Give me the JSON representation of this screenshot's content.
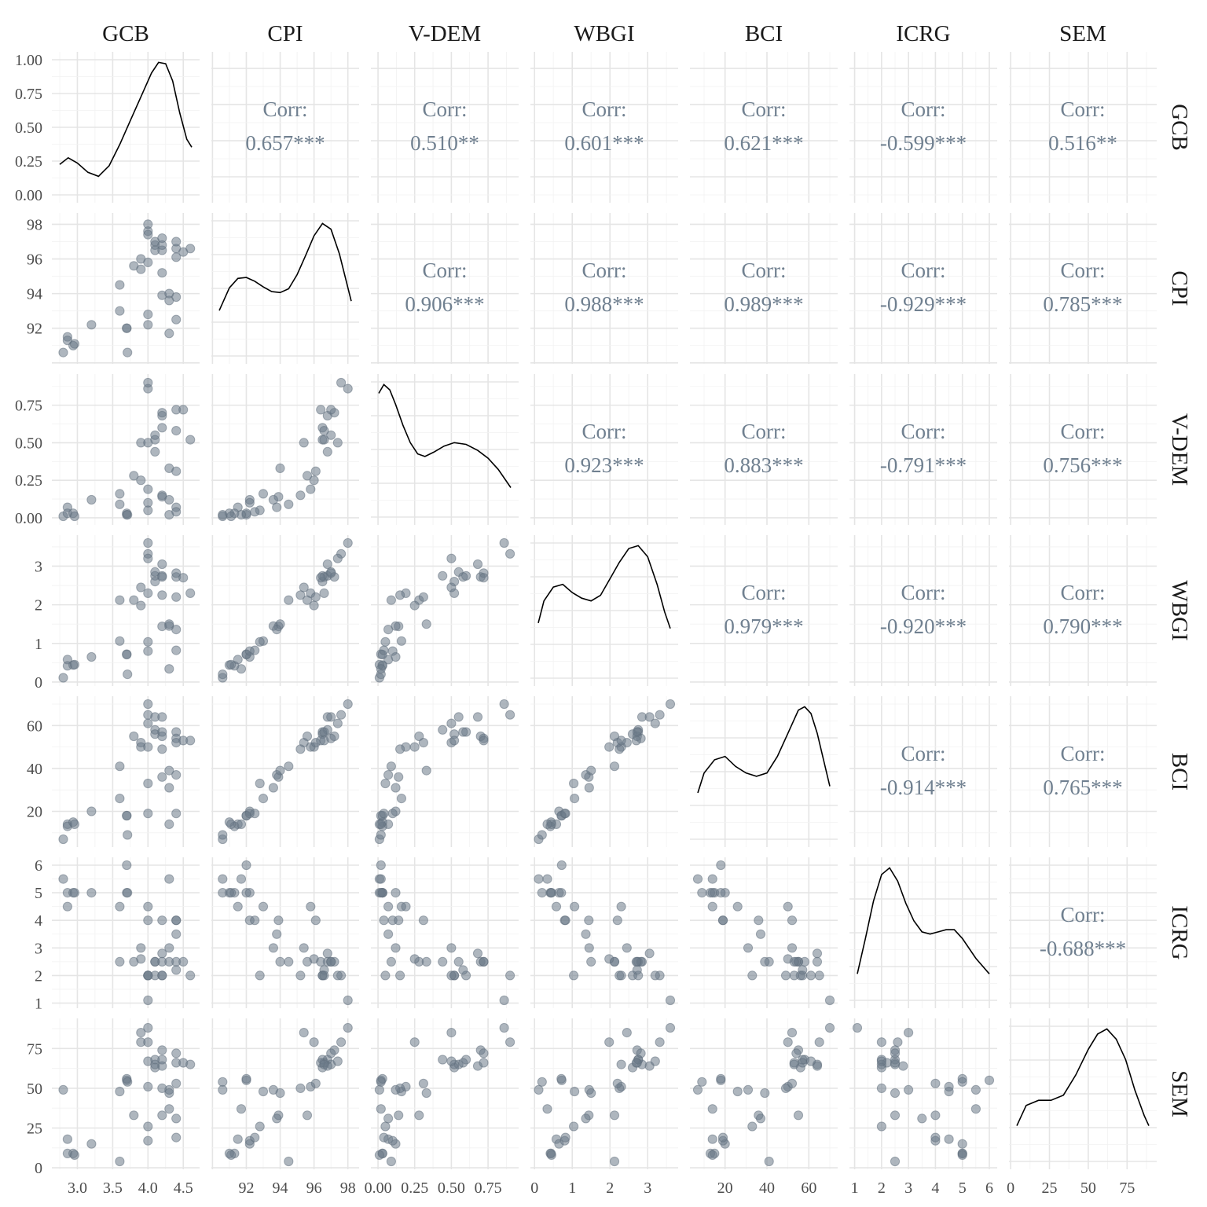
{
  "chart_data": {
    "type": "scatter-matrix",
    "variables": [
      "GCB",
      "CPI",
      "V-DEM",
      "WBGI",
      "BCI",
      "ICRG",
      "SEM"
    ],
    "axes": {
      "GCB": {
        "range": [
          2.75,
          4.62
        ],
        "ticks": [
          3.0,
          3.5,
          4.0,
          4.5
        ],
        "tick_labels": [
          "3.0",
          "3.5",
          "4.0",
          "4.5"
        ]
      },
      "CPI": {
        "range": [
          90.4,
          98.2
        ],
        "ticks": [
          92,
          94,
          96,
          98
        ],
        "tick_labels": [
          "92",
          "94",
          "96",
          "98"
        ]
      },
      "V-DEM": {
        "range": [
          0.005,
          0.905
        ],
        "ticks": [
          0.0,
          0.25,
          0.5,
          0.75
        ],
        "tick_labels": [
          "0.00",
          "0.25",
          "0.50",
          "0.75"
        ]
      },
      "WBGI": {
        "range": [
          0.1,
          3.6
        ],
        "ticks": [
          0,
          1,
          2,
          3
        ],
        "tick_labels": [
          "0",
          "1",
          "2",
          "3"
        ]
      },
      "BCI": {
        "range": [
          7,
          70
        ],
        "ticks": [
          20,
          40,
          60
        ],
        "tick_labels": [
          "20",
          "40",
          "60"
        ]
      },
      "ICRG": {
        "range": [
          1.1,
          6.0
        ],
        "ticks": [
          1,
          2,
          3,
          4,
          5,
          6
        ],
        "tick_labels": [
          "1",
          "2",
          "3",
          "4",
          "5",
          "6"
        ]
      },
      "SEM": {
        "range": [
          4,
          89
        ],
        "ticks": [
          0,
          25,
          50,
          75
        ],
        "tick_labels": [
          "0",
          "25",
          "50",
          "75"
        ]
      }
    },
    "density_y_axis": {
      "range": [
        0,
        1
      ],
      "ticks": [
        0,
        0.25,
        0.5,
        0.75,
        1.0
      ],
      "tick_labels": [
        "0.00",
        "0.25",
        "0.50",
        "0.75",
        "1.00"
      ]
    },
    "correlations": [
      [
        "GCB",
        "CPI",
        "0.657***"
      ],
      [
        "GCB",
        "V-DEM",
        "0.510**"
      ],
      [
        "GCB",
        "WBGI",
        "0.601***"
      ],
      [
        "GCB",
        "BCI",
        "0.621***"
      ],
      [
        "GCB",
        "ICRG",
        "-0.599***"
      ],
      [
        "GCB",
        "SEM",
        "0.516**"
      ],
      [
        "CPI",
        "V-DEM",
        "0.906***"
      ],
      [
        "CPI",
        "WBGI",
        "0.988***"
      ],
      [
        "CPI",
        "BCI",
        "0.989***"
      ],
      [
        "CPI",
        "ICRG",
        "-0.929***"
      ],
      [
        "CPI",
        "SEM",
        "0.785***"
      ],
      [
        "V-DEM",
        "WBGI",
        "0.923***"
      ],
      [
        "V-DEM",
        "BCI",
        "0.883***"
      ],
      [
        "V-DEM",
        "ICRG",
        "-0.791***"
      ],
      [
        "V-DEM",
        "SEM",
        "0.756***"
      ],
      [
        "WBGI",
        "BCI",
        "0.979***"
      ],
      [
        "WBGI",
        "ICRG",
        "-0.920***"
      ],
      [
        "WBGI",
        "SEM",
        "0.790***"
      ],
      [
        "BCI",
        "ICRG",
        "-0.914***"
      ],
      [
        "BCI",
        "SEM",
        "0.765***"
      ],
      [
        "ICRG",
        "SEM",
        "-0.688***"
      ]
    ],
    "corr_label": "Corr:",
    "density_curves": {
      "GCB": [
        [
          2.75,
          0.23
        ],
        [
          2.87,
          0.28
        ],
        [
          3.0,
          0.24
        ],
        [
          3.15,
          0.17
        ],
        [
          3.3,
          0.14
        ],
        [
          3.45,
          0.22
        ],
        [
          3.6,
          0.38
        ],
        [
          3.75,
          0.56
        ],
        [
          3.9,
          0.74
        ],
        [
          4.05,
          0.92
        ],
        [
          4.15,
          1.0
        ],
        [
          4.25,
          0.99
        ],
        [
          4.35,
          0.86
        ],
        [
          4.45,
          0.62
        ],
        [
          4.55,
          0.42
        ],
        [
          4.62,
          0.36
        ]
      ],
      "CPI": [
        [
          90.4,
          0.48
        ],
        [
          91,
          0.72
        ],
        [
          91.5,
          0.82
        ],
        [
          92,
          0.83
        ],
        [
          92.5,
          0.79
        ],
        [
          93,
          0.73
        ],
        [
          93.5,
          0.68
        ],
        [
          94,
          0.67
        ],
        [
          94.5,
          0.71
        ],
        [
          95,
          0.86
        ],
        [
          95.5,
          1.06
        ],
        [
          96,
          1.27
        ],
        [
          96.5,
          1.4
        ],
        [
          97,
          1.34
        ],
        [
          97.5,
          1.08
        ],
        [
          98.2,
          0.58
        ]
      ],
      "V-DEM": [
        [
          0.005,
          1.43
        ],
        [
          0.04,
          1.53
        ],
        [
          0.08,
          1.47
        ],
        [
          0.12,
          1.3
        ],
        [
          0.17,
          1.06
        ],
        [
          0.22,
          0.86
        ],
        [
          0.27,
          0.73
        ],
        [
          0.32,
          0.7
        ],
        [
          0.38,
          0.75
        ],
        [
          0.45,
          0.82
        ],
        [
          0.52,
          0.86
        ],
        [
          0.6,
          0.84
        ],
        [
          0.68,
          0.77
        ],
        [
          0.75,
          0.68
        ],
        [
          0.82,
          0.55
        ],
        [
          0.905,
          0.34
        ]
      ],
      "WBGI": [
        [
          0.1,
          0.2
        ],
        [
          0.25,
          0.28
        ],
        [
          0.5,
          0.33
        ],
        [
          0.75,
          0.34
        ],
        [
          1.0,
          0.31
        ],
        [
          1.25,
          0.29
        ],
        [
          1.5,
          0.28
        ],
        [
          1.75,
          0.3
        ],
        [
          2.0,
          0.36
        ],
        [
          2.25,
          0.42
        ],
        [
          2.5,
          0.47
        ],
        [
          2.75,
          0.48
        ],
        [
          3.0,
          0.44
        ],
        [
          3.25,
          0.34
        ],
        [
          3.45,
          0.24
        ],
        [
          3.6,
          0.18
        ]
      ],
      "BCI": [
        [
          7,
          0.014
        ],
        [
          10,
          0.02
        ],
        [
          15,
          0.024
        ],
        [
          20,
          0.025
        ],
        [
          25,
          0.022
        ],
        [
          30,
          0.02
        ],
        [
          35,
          0.019
        ],
        [
          40,
          0.02
        ],
        [
          45,
          0.025
        ],
        [
          50,
          0.032
        ],
        [
          55,
          0.039
        ],
        [
          58,
          0.04
        ],
        [
          61,
          0.038
        ],
        [
          64,
          0.032
        ],
        [
          67,
          0.024
        ],
        [
          70,
          0.016
        ]
      ],
      "ICRG": [
        [
          1.1,
          0.12
        ],
        [
          1.4,
          0.28
        ],
        [
          1.7,
          0.45
        ],
        [
          2.0,
          0.57
        ],
        [
          2.3,
          0.6
        ],
        [
          2.6,
          0.54
        ],
        [
          2.9,
          0.44
        ],
        [
          3.2,
          0.36
        ],
        [
          3.5,
          0.31
        ],
        [
          3.8,
          0.3
        ],
        [
          4.1,
          0.31
        ],
        [
          4.4,
          0.32
        ],
        [
          4.7,
          0.32
        ],
        [
          5.0,
          0.28
        ],
        [
          5.5,
          0.19
        ],
        [
          6.0,
          0.12
        ]
      ],
      "SEM": [
        [
          4,
          0.007
        ],
        [
          10,
          0.011
        ],
        [
          18,
          0.012
        ],
        [
          26,
          0.012
        ],
        [
          34,
          0.013
        ],
        [
          42,
          0.017
        ],
        [
          50,
          0.022
        ],
        [
          56,
          0.025
        ],
        [
          62,
          0.026
        ],
        [
          68,
          0.024
        ],
        [
          74,
          0.02
        ],
        [
          80,
          0.014
        ],
        [
          86,
          0.009
        ],
        [
          89,
          0.007
        ]
      ]
    },
    "observations": [
      {
        "GCB": 2.8,
        "CPI": 90.6,
        "V-DEM": 0.01,
        "WBGI": 0.11,
        "BCI": 7,
        "ICRG": 5.5,
        "SEM": 49
      },
      {
        "GCB": 2.86,
        "CPI": 91.5,
        "V-DEM": 0.07,
        "WBGI": 0.58,
        "BCI": 14,
        "ICRG": 4.5,
        "SEM": 18
      },
      {
        "GCB": 2.86,
        "CPI": 91.3,
        "V-DEM": 0.03,
        "WBGI": 0.42,
        "BCI": 13,
        "ICRG": 5.0,
        "SEM": 9
      },
      {
        "GCB": 2.94,
        "CPI": 91.0,
        "V-DEM": 0.03,
        "WBGI": 0.44,
        "BCI": 15,
        "ICRG": 5.0,
        "SEM": 9
      },
      {
        "GCB": 2.96,
        "CPI": 91.1,
        "V-DEM": 0.01,
        "WBGI": 0.45,
        "BCI": 14,
        "ICRG": 5.0,
        "SEM": 8
      },
      {
        "GCB": 3.2,
        "CPI": 92.2,
        "V-DEM": 0.12,
        "WBGI": 0.65,
        "BCI": 20,
        "ICRG": 5.0,
        "SEM": 15
      },
      {
        "GCB": 3.6,
        "CPI": 93.0,
        "V-DEM": 0.16,
        "WBGI": 1.06,
        "BCI": 26,
        "ICRG": 4.5,
        "SEM": 48
      },
      {
        "GCB": 3.6,
        "CPI": 94.5,
        "V-DEM": 0.09,
        "WBGI": 2.12,
        "BCI": 41,
        "ICRG": 2.5,
        "SEM": 4
      },
      {
        "GCB": 3.7,
        "CPI": 92.0,
        "V-DEM": 0.02,
        "WBGI": 0.72,
        "BCI": 18,
        "ICRG": 6.0,
        "SEM": 55
      },
      {
        "GCB": 3.7,
        "CPI": 92.0,
        "V-DEM": 0.03,
        "WBGI": 0.71,
        "BCI": 18,
        "ICRG": 5.0,
        "SEM": 56
      },
      {
        "GCB": 3.71,
        "CPI": 90.6,
        "V-DEM": 0.02,
        "WBGI": 0.2,
        "BCI": 9,
        "ICRG": 5.0,
        "SEM": 54
      },
      {
        "GCB": 3.8,
        "CPI": 95.6,
        "V-DEM": 0.28,
        "WBGI": 2.12,
        "BCI": 55,
        "ICRG": 2.5,
        "SEM": 33
      },
      {
        "GCB": 3.9,
        "CPI": 95.4,
        "V-DEM": 0.5,
        "WBGI": 2.45,
        "BCI": 52,
        "ICRG": 3.0,
        "SEM": 85
      },
      {
        "GCB": 3.9,
        "CPI": 96.0,
        "V-DEM": 0.25,
        "WBGI": 1.98,
        "BCI": 50,
        "ICRG": 2.6,
        "SEM": 79
      },
      {
        "GCB": 4.0,
        "CPI": 98.0,
        "V-DEM": 0.86,
        "WBGI": 3.6,
        "BCI": 70,
        "ICRG": 1.1,
        "SEM": 88
      },
      {
        "GCB": 4.0,
        "CPI": 97.6,
        "V-DEM": 0.9,
        "WBGI": 3.32,
        "BCI": 65,
        "ICRG": 2.0,
        "SEM": 79
      },
      {
        "GCB": 4.0,
        "CPI": 95.8,
        "V-DEM": 0.19,
        "WBGI": 2.3,
        "BCI": 50,
        "ICRG": 4.5,
        "SEM": 51
      },
      {
        "GCB": 4.0,
        "CPI": 92.8,
        "V-DEM": 0.05,
        "WBGI": 1.04,
        "BCI": 33,
        "ICRG": 2.0,
        "SEM": 26
      },
      {
        "GCB": 4.0,
        "CPI": 92.2,
        "V-DEM": 0.1,
        "WBGI": 0.8,
        "BCI": 19,
        "ICRG": 4.0,
        "SEM": 17
      },
      {
        "GCB": 4.1,
        "CPI": 96.8,
        "V-DEM": 0.44,
        "WBGI": 2.75,
        "BCI": 58,
        "ICRG": 2.5,
        "SEM": 68
      },
      {
        "GCB": 4.1,
        "CPI": 96.5,
        "V-DEM": 0.52,
        "WBGI": 2.6,
        "BCI": 56,
        "ICRG": 2.0,
        "SEM": 63
      },
      {
        "GCB": 4.1,
        "CPI": 97.0,
        "V-DEM": 0.55,
        "WBGI": 2.85,
        "BCI": 64,
        "ICRG": 2.5,
        "SEM": 65
      },
      {
        "GCB": 4.2,
        "CPI": 96.5,
        "V-DEM": 0.6,
        "WBGI": 2.75,
        "BCI": 57,
        "ICRG": 2.0,
        "SEM": 68
      },
      {
        "GCB": 4.2,
        "CPI": 96.8,
        "V-DEM": 0.68,
        "WBGI": 3.05,
        "BCI": 64,
        "ICRG": 2.8,
        "SEM": 64
      },
      {
        "GCB": 4.2,
        "CPI": 97.2,
        "V-DEM": 0.7,
        "WBGI": 2.72,
        "BCI": 55,
        "ICRG": 2.5,
        "SEM": 74
      },
      {
        "GCB": 4.2,
        "CPI": 95.2,
        "V-DEM": 0.15,
        "WBGI": 2.25,
        "BCI": 49,
        "ICRG": 2.0,
        "SEM": 50
      },
      {
        "GCB": 4.2,
        "CPI": 93.9,
        "V-DEM": 0.14,
        "WBGI": 1.44,
        "BCI": 36,
        "ICRG": 4.0,
        "SEM": 33
      },
      {
        "GCB": 4.3,
        "CPI": 94.0,
        "V-DEM": 0.33,
        "WBGI": 1.5,
        "BCI": 39,
        "ICRG": 2.5,
        "SEM": 47
      },
      {
        "GCB": 4.3,
        "CPI": 91.7,
        "V-DEM": 0.02,
        "WBGI": 0.34,
        "BCI": 14,
        "ICRG": 5.5,
        "SEM": 37
      },
      {
        "GCB": 4.3,
        "CPI": 93.6,
        "V-DEM": 0.12,
        "WBGI": 1.45,
        "BCI": 31,
        "ICRG": 3.0,
        "SEM": 49
      },
      {
        "GCB": 4.4,
        "CPI": 96.6,
        "V-DEM": 0.58,
        "WBGI": 2.72,
        "BCI": 57,
        "ICRG": 2.2,
        "SEM": 66
      },
      {
        "GCB": 4.4,
        "CPI": 97.0,
        "V-DEM": 0.72,
        "WBGI": 2.82,
        "BCI": 54,
        "ICRG": 2.5,
        "SEM": 72
      },
      {
        "GCB": 4.4,
        "CPI": 96.1,
        "V-DEM": 0.31,
        "WBGI": 2.2,
        "BCI": 52,
        "ICRG": 4.0,
        "SEM": 53
      },
      {
        "GCB": 4.4,
        "CPI": 93.8,
        "V-DEM": 0.07,
        "WBGI": 1.36,
        "BCI": 37,
        "ICRG": 3.5,
        "SEM": 31
      },
      {
        "GCB": 4.4,
        "CPI": 92.5,
        "V-DEM": 0.04,
        "WBGI": 0.82,
        "BCI": 19,
        "ICRG": 4.0,
        "SEM": 19
      },
      {
        "GCB": 4.5,
        "CPI": 96.4,
        "V-DEM": 0.72,
        "WBGI": 2.7,
        "BCI": 53,
        "ICRG": 2.5,
        "SEM": 66
      },
      {
        "GCB": 4.6,
        "CPI": 96.6,
        "V-DEM": 0.52,
        "WBGI": 2.3,
        "BCI": 53,
        "ICRG": 2.0,
        "SEM": 65
      },
      {
        "GCB": 4.0,
        "CPI": 97.4,
        "V-DEM": 0.5,
        "WBGI": 3.2,
        "BCI": 61,
        "ICRG": 2.0,
        "SEM": 67
      }
    ]
  }
}
